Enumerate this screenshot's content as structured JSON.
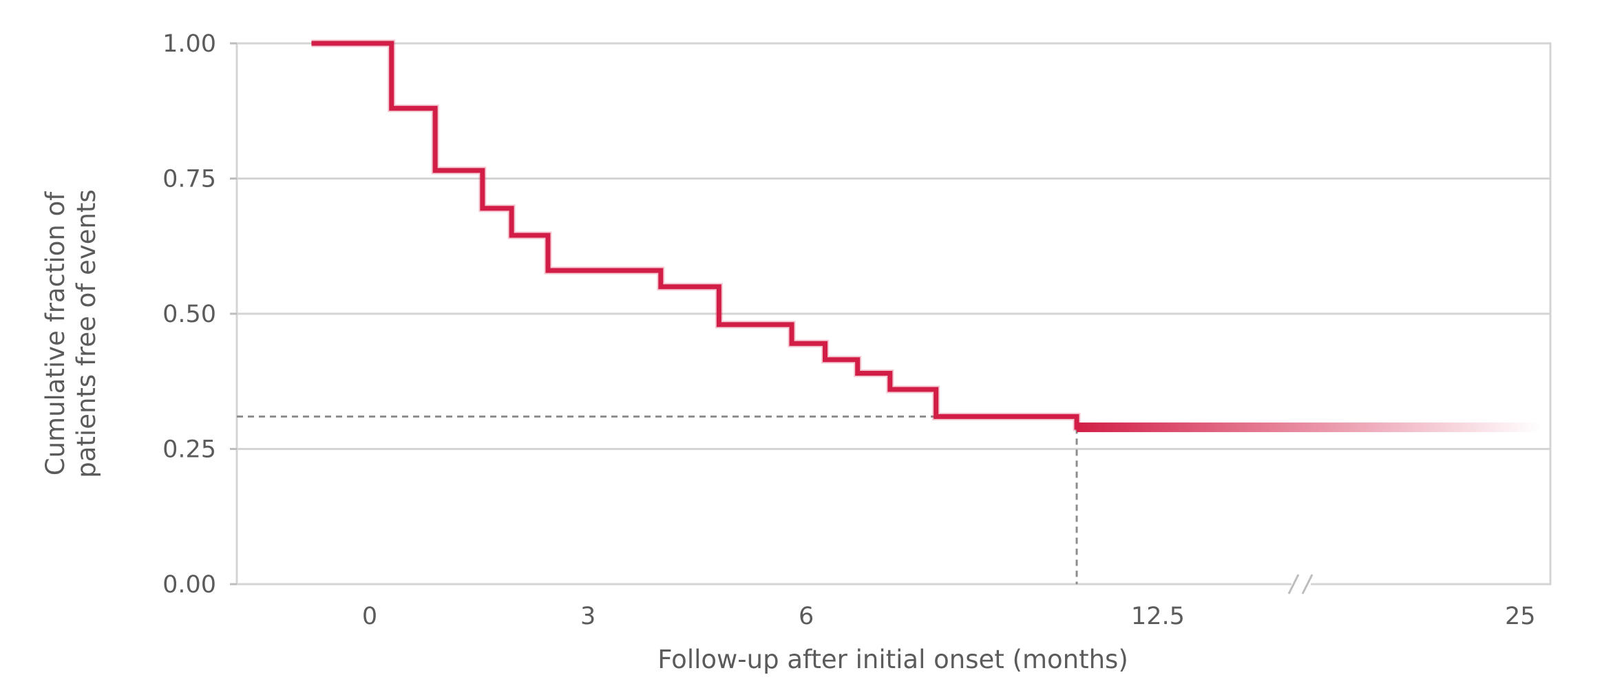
{
  "chart_data": {
    "type": "line",
    "subtype": "kaplan-meier-step",
    "xlabel": "Follow-up after initial onset (months)",
    "ylabel_lines": [
      "Cumulative fraction of",
      "patients free of events"
    ],
    "ylim": [
      0,
      1
    ],
    "y_ticks": [
      {
        "value": 0,
        "label": "0.00"
      },
      {
        "value": 0.25,
        "label": "0.25"
      },
      {
        "value": 0.5,
        "label": "0.50"
      },
      {
        "value": 0.75,
        "label": "0.75"
      },
      {
        "value": 1,
        "label": "1.00"
      }
    ],
    "x_ticks": [
      {
        "value": 0,
        "label": "0"
      },
      {
        "value": 3,
        "label": "3"
      },
      {
        "value": 6,
        "label": "6"
      },
      {
        "value": 12.5,
        "label": "12.5"
      },
      {
        "value": 25,
        "label": "25"
      }
    ],
    "x_axis_break": true,
    "grid": "horizontal",
    "series": [
      {
        "color": "#d21e47",
        "steps": [
          {
            "x": -0.8,
            "y": 1.0
          },
          {
            "x": 0.3,
            "y": 0.88
          },
          {
            "x": 0.9,
            "y": 0.765
          },
          {
            "x": 1.55,
            "y": 0.695
          },
          {
            "x": 1.95,
            "y": 0.645
          },
          {
            "x": 2.45,
            "y": 0.58
          },
          {
            "x": 4.0,
            "y": 0.55
          },
          {
            "x": 4.8,
            "y": 0.48
          },
          {
            "x": 5.8,
            "y": 0.445
          },
          {
            "x": 6.35,
            "y": 0.415
          },
          {
            "x": 6.95,
            "y": 0.39
          },
          {
            "x": 7.55,
            "y": 0.36
          },
          {
            "x": 8.4,
            "y": 0.31
          },
          {
            "x": 11.0,
            "y": 0.29
          }
        ],
        "end_x": 25,
        "fades_out": true
      }
    ],
    "reference_lines": [
      {
        "style": "dashed",
        "color": "#8c8c8c",
        "y": 0.31,
        "x": 11.0
      }
    ]
  }
}
